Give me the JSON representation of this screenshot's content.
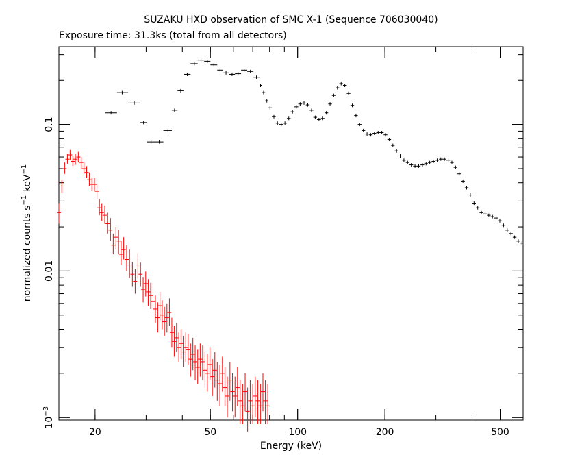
{
  "chart_data": {
    "type": "scatter",
    "title": "SUZAKU HXD observation of SMC X-1 (Sequence 706030040)",
    "subtitle": "Exposure time: 31.3ks (total from all detectors)",
    "xlabel": "Energy (keV)",
    "ylabel_main": "normalized counts s",
    "ylabel_exp1": "−1",
    "ylabel_mid": " keV",
    "ylabel_exp2": "−1",
    "x_scale": "log",
    "y_scale": "log",
    "xlim": [
      15,
      600
    ],
    "ylim": [
      0.00096,
      0.34
    ],
    "x_ticks": [
      {
        "value": 20,
        "label": "20"
      },
      {
        "value": 50,
        "label": "50"
      },
      {
        "value": 100,
        "label": "100"
      },
      {
        "value": 200,
        "label": "200"
      },
      {
        "value": 500,
        "label": "500"
      }
    ],
    "y_ticks": [
      {
        "value": 0.1,
        "label": "0.1"
      },
      {
        "value": 0.01,
        "label": "0.01"
      },
      {
        "value": 0.001,
        "label": "10",
        "exp": "−3"
      }
    ],
    "grid": false,
    "legend": "none",
    "series": [
      {
        "color": "#000000",
        "points": [
          [
            22.7,
            0.12,
            21.7,
            23.8
          ],
          [
            24.8,
            0.165,
            23.8,
            26.0
          ],
          [
            27.3,
            0.14,
            26.0,
            28.6
          ],
          [
            29.4,
            0.103,
            28.6,
            30.2
          ],
          [
            31.2,
            0.076,
            30.2,
            32.3
          ],
          [
            33.3,
            0.076,
            32.3,
            34.4
          ],
          [
            35.7,
            0.091,
            34.4,
            36.8
          ],
          [
            37.6,
            0.125,
            36.8,
            38.5
          ],
          [
            39.5,
            0.17,
            38.5,
            40.5
          ],
          [
            41.6,
            0.22,
            40.5,
            42.7
          ],
          [
            44.0,
            0.26,
            42.7,
            45.2
          ],
          [
            46.4,
            0.275,
            45.2,
            47.6
          ],
          [
            48.8,
            0.27,
            47.6,
            50.0
          ],
          [
            51.4,
            0.255,
            50.0,
            52.8
          ],
          [
            54.0,
            0.235,
            52.8,
            55.3
          ],
          [
            56.6,
            0.225,
            55.3,
            58.0
          ],
          [
            59.4,
            0.22,
            58.0,
            60.8
          ],
          [
            62.3,
            0.222,
            60.8,
            63.8
          ],
          [
            65.4,
            0.235,
            63.8,
            67.0
          ],
          [
            68.7,
            0.23,
            67.0,
            70.4
          ],
          [
            72.1,
            0.21,
            70.4,
            73.9
          ],
          [
            74.5,
            0.185,
            73.9,
            75.2
          ],
          [
            76.3,
            0.165,
            75.2,
            77.3
          ],
          [
            78.3,
            0.145,
            77.3,
            79.3
          ],
          [
            80.3,
            0.13,
            79.3,
            81.5
          ],
          [
            82.8,
            0.113,
            81.5,
            84.0
          ],
          [
            85.2,
            0.102,
            84.0,
            86.5
          ],
          [
            87.8,
            0.1,
            86.5,
            89.0
          ],
          [
            90.4,
            0.102,
            89.0,
            91.8
          ],
          [
            93.2,
            0.11,
            91.8,
            94.6
          ],
          [
            96.0,
            0.122,
            94.6,
            97.5
          ],
          [
            99.0,
            0.132,
            97.5,
            100.5
          ],
          [
            102.0,
            0.138,
            100.5,
            103.6
          ],
          [
            105.2,
            0.14,
            103.6,
            106.8
          ],
          [
            108.4,
            0.136,
            106.8,
            110.0
          ],
          [
            111.7,
            0.125,
            110.0,
            113.3
          ],
          [
            115.0,
            0.112,
            113.3,
            116.7
          ],
          [
            118.5,
            0.108,
            116.7,
            120.3
          ],
          [
            122.0,
            0.11,
            120.3,
            123.8
          ],
          [
            125.6,
            0.12,
            123.8,
            127.5
          ],
          [
            129.4,
            0.138,
            127.5,
            131.3
          ],
          [
            133.2,
            0.158,
            131.3,
            135.2
          ],
          [
            137.2,
            0.178,
            135.2,
            139.2
          ],
          [
            141.3,
            0.19,
            139.2,
            143.4
          ],
          [
            145.5,
            0.185,
            143.4,
            147.7
          ],
          [
            149.9,
            0.163,
            147.7,
            152.1
          ],
          [
            154.4,
            0.135,
            152.1,
            156.7
          ],
          [
            159.0,
            0.115,
            156.7,
            161.3
          ],
          [
            163.7,
            0.1,
            161.3,
            166.1
          ],
          [
            168.6,
            0.091,
            166.1,
            171.1
          ],
          [
            173.6,
            0.086,
            171.1,
            176.2
          ],
          [
            178.8,
            0.085,
            176.2,
            181.4
          ],
          [
            184.1,
            0.087,
            181.4,
            186.8
          ],
          [
            189.6,
            0.088,
            186.8,
            192.4
          ],
          [
            195.2,
            0.088,
            192.4,
            198.1
          ],
          [
            201.0,
            0.085,
            198.1,
            204.0
          ],
          [
            207.0,
            0.079,
            204.0,
            210.1
          ],
          [
            213.2,
            0.072,
            210.1,
            216.3
          ],
          [
            219.5,
            0.066,
            216.3,
            222.7
          ],
          [
            226.0,
            0.061,
            222.7,
            229.4
          ],
          [
            232.7,
            0.057,
            229.4,
            236.2
          ],
          [
            239.6,
            0.055,
            236.2,
            243.2
          ],
          [
            246.8,
            0.053,
            243.2,
            250.4
          ],
          [
            254.1,
            0.052,
            250.4,
            257.9
          ],
          [
            261.7,
            0.052,
            257.9,
            265.5
          ],
          [
            269.5,
            0.053,
            265.5,
            273.4
          ],
          [
            277.5,
            0.054,
            273.4,
            281.6
          ],
          [
            285.7,
            0.055,
            281.6,
            290.0
          ],
          [
            294.2,
            0.056,
            290.0,
            298.6
          ],
          [
            303.0,
            0.057,
            298.6,
            307.5
          ],
          [
            312.0,
            0.058,
            307.5,
            316.6
          ],
          [
            321.3,
            0.058,
            316.6,
            326.0
          ],
          [
            330.8,
            0.057,
            326.0,
            335.7
          ],
          [
            340.7,
            0.055,
            335.7,
            345.7
          ],
          [
            350.8,
            0.051,
            345.7,
            356.0
          ],
          [
            361.2,
            0.046,
            356.0,
            366.6
          ],
          [
            372.0,
            0.041,
            366.6,
            377.5
          ],
          [
            383.0,
            0.037,
            377.5,
            388.7
          ],
          [
            394.4,
            0.033,
            388.7,
            400.3
          ],
          [
            406.2,
            0.029,
            400.3,
            412.2
          ],
          [
            418.3,
            0.027,
            412.2,
            424.5
          ],
          [
            430.7,
            0.025,
            424.5,
            437.1
          ],
          [
            443.5,
            0.0245,
            437.1,
            450.1
          ],
          [
            456.7,
            0.024,
            450.1,
            463.5
          ],
          [
            470.3,
            0.0235,
            463.5,
            477.3
          ],
          [
            484.3,
            0.023,
            477.3,
            491.5
          ],
          [
            498.7,
            0.022,
            491.5,
            506.1
          ],
          [
            513.5,
            0.0205,
            506.1,
            521.2
          ],
          [
            528.8,
            0.019,
            521.2,
            536.7
          ],
          [
            544.6,
            0.018,
            536.7,
            552.7
          ],
          [
            560.8,
            0.017,
            552.7,
            569.1
          ],
          [
            577.4,
            0.016,
            569.1,
            586.0
          ],
          [
            594.6,
            0.0155,
            586.0,
            600.0
          ]
        ]
      },
      {
        "color": "#ff0000",
        "points": [
          [
            15.0,
            0.025,
            0.021,
            0.029
          ],
          [
            15.35,
            0.038,
            0.034,
            0.042
          ],
          [
            15.7,
            0.05,
            0.046,
            0.055
          ],
          [
            16.05,
            0.058,
            0.054,
            0.063
          ],
          [
            16.4,
            0.062,
            0.057,
            0.067
          ],
          [
            16.75,
            0.056,
            0.052,
            0.061
          ],
          [
            17.1,
            0.058,
            0.053,
            0.063
          ],
          [
            17.5,
            0.06,
            0.055,
            0.065
          ],
          [
            17.9,
            0.055,
            0.05,
            0.06
          ],
          [
            18.3,
            0.05,
            0.046,
            0.055
          ],
          [
            18.7,
            0.047,
            0.043,
            0.052
          ],
          [
            19.1,
            0.042,
            0.038,
            0.047
          ],
          [
            19.5,
            0.039,
            0.035,
            0.043
          ],
          [
            19.9,
            0.039,
            0.035,
            0.043
          ],
          [
            20.3,
            0.035,
            0.031,
            0.039
          ],
          [
            20.7,
            0.027,
            0.024,
            0.031
          ],
          [
            21.1,
            0.025,
            0.022,
            0.029
          ],
          [
            21.6,
            0.024,
            0.021,
            0.028
          ],
          [
            22.1,
            0.021,
            0.018,
            0.025
          ],
          [
            22.6,
            0.019,
            0.016,
            0.023
          ],
          [
            23.1,
            0.015,
            0.013,
            0.018
          ],
          [
            23.6,
            0.017,
            0.014,
            0.02
          ],
          [
            24.1,
            0.016,
            0.013,
            0.019
          ],
          [
            24.6,
            0.013,
            0.011,
            0.016
          ],
          [
            25.1,
            0.014,
            0.012,
            0.017
          ],
          [
            25.7,
            0.012,
            0.01,
            0.015
          ],
          [
            26.3,
            0.011,
            0.009,
            0.014
          ],
          [
            26.9,
            0.0095,
            0.0078,
            0.0115
          ],
          [
            27.5,
            0.0085,
            0.007,
            0.0103
          ],
          [
            28.1,
            0.011,
            0.009,
            0.0132
          ],
          [
            28.7,
            0.0095,
            0.0078,
            0.0114
          ],
          [
            29.3,
            0.0075,
            0.0061,
            0.0091
          ],
          [
            29.9,
            0.0082,
            0.0067,
            0.0099
          ],
          [
            30.5,
            0.0072,
            0.0058,
            0.0088
          ],
          [
            31.1,
            0.0068,
            0.0055,
            0.0083
          ],
          [
            31.7,
            0.0062,
            0.005,
            0.0076
          ],
          [
            32.3,
            0.0055,
            0.0044,
            0.0068
          ],
          [
            32.9,
            0.0048,
            0.0038,
            0.0061
          ],
          [
            33.5,
            0.0058,
            0.0046,
            0.0072
          ],
          [
            34.1,
            0.005,
            0.004,
            0.0063
          ],
          [
            34.7,
            0.0045,
            0.0036,
            0.0057
          ],
          [
            35.4,
            0.0048,
            0.0038,
            0.006
          ],
          [
            36.1,
            0.0052,
            0.0042,
            0.0065
          ],
          [
            36.8,
            0.0038,
            0.003,
            0.0048
          ],
          [
            37.5,
            0.0033,
            0.0026,
            0.0042
          ],
          [
            38.2,
            0.0035,
            0.0028,
            0.0044
          ],
          [
            38.9,
            0.003,
            0.0024,
            0.0038
          ],
          [
            39.6,
            0.0032,
            0.0025,
            0.004
          ],
          [
            40.3,
            0.0028,
            0.0022,
            0.0036
          ],
          [
            41.1,
            0.003,
            0.0024,
            0.0038
          ],
          [
            41.9,
            0.0029,
            0.0023,
            0.0037
          ],
          [
            42.7,
            0.0025,
            0.0019,
            0.0032
          ],
          [
            43.5,
            0.0027,
            0.0021,
            0.0035
          ],
          [
            44.3,
            0.0024,
            0.0018,
            0.0031
          ],
          [
            45.2,
            0.0022,
            0.0017,
            0.0029
          ],
          [
            46.1,
            0.0025,
            0.0019,
            0.0032
          ],
          [
            47.0,
            0.0024,
            0.0018,
            0.0031
          ],
          [
            47.9,
            0.0021,
            0.0016,
            0.0028
          ],
          [
            48.8,
            0.002,
            0.0015,
            0.0027
          ],
          [
            49.8,
            0.0023,
            0.0018,
            0.003
          ],
          [
            50.8,
            0.0019,
            0.0014,
            0.0025
          ],
          [
            51.8,
            0.0021,
            0.0016,
            0.0028
          ],
          [
            52.8,
            0.0018,
            0.0013,
            0.0024
          ],
          [
            53.9,
            0.0017,
            0.0012,
            0.0023
          ],
          [
            55.0,
            0.002,
            0.0015,
            0.0026
          ],
          [
            56.1,
            0.0016,
            0.0012,
            0.0022
          ],
          [
            57.2,
            0.0014,
            0.001,
            0.0019
          ],
          [
            58.4,
            0.0018,
            0.0013,
            0.0024
          ],
          [
            59.6,
            0.0015,
            0.0011,
            0.002
          ],
          [
            60.8,
            0.0014,
            0.001,
            0.0019
          ],
          [
            62.0,
            0.0016,
            0.0012,
            0.0022
          ],
          [
            63.3,
            0.0013,
            0.0009,
            0.0018
          ],
          [
            64.6,
            0.0012,
            0.0009,
            0.0017
          ],
          [
            65.9,
            0.0015,
            0.0011,
            0.002
          ],
          [
            67.2,
            0.0011,
            0.0008,
            0.0016
          ],
          [
            68.6,
            0.0013,
            0.0009,
            0.0018
          ],
          [
            70.0,
            0.0012,
            0.0009,
            0.0017
          ],
          [
            71.4,
            0.0014,
            0.001,
            0.0019
          ],
          [
            72.9,
            0.0013,
            0.0009,
            0.0018
          ],
          [
            74.4,
            0.0012,
            0.0009,
            0.0017
          ],
          [
            75.9,
            0.0015,
            0.0011,
            0.002
          ],
          [
            77.4,
            0.0013,
            0.0009,
            0.0018
          ],
          [
            78.9,
            0.0012,
            0.0009,
            0.0017
          ]
        ]
      }
    ]
  }
}
